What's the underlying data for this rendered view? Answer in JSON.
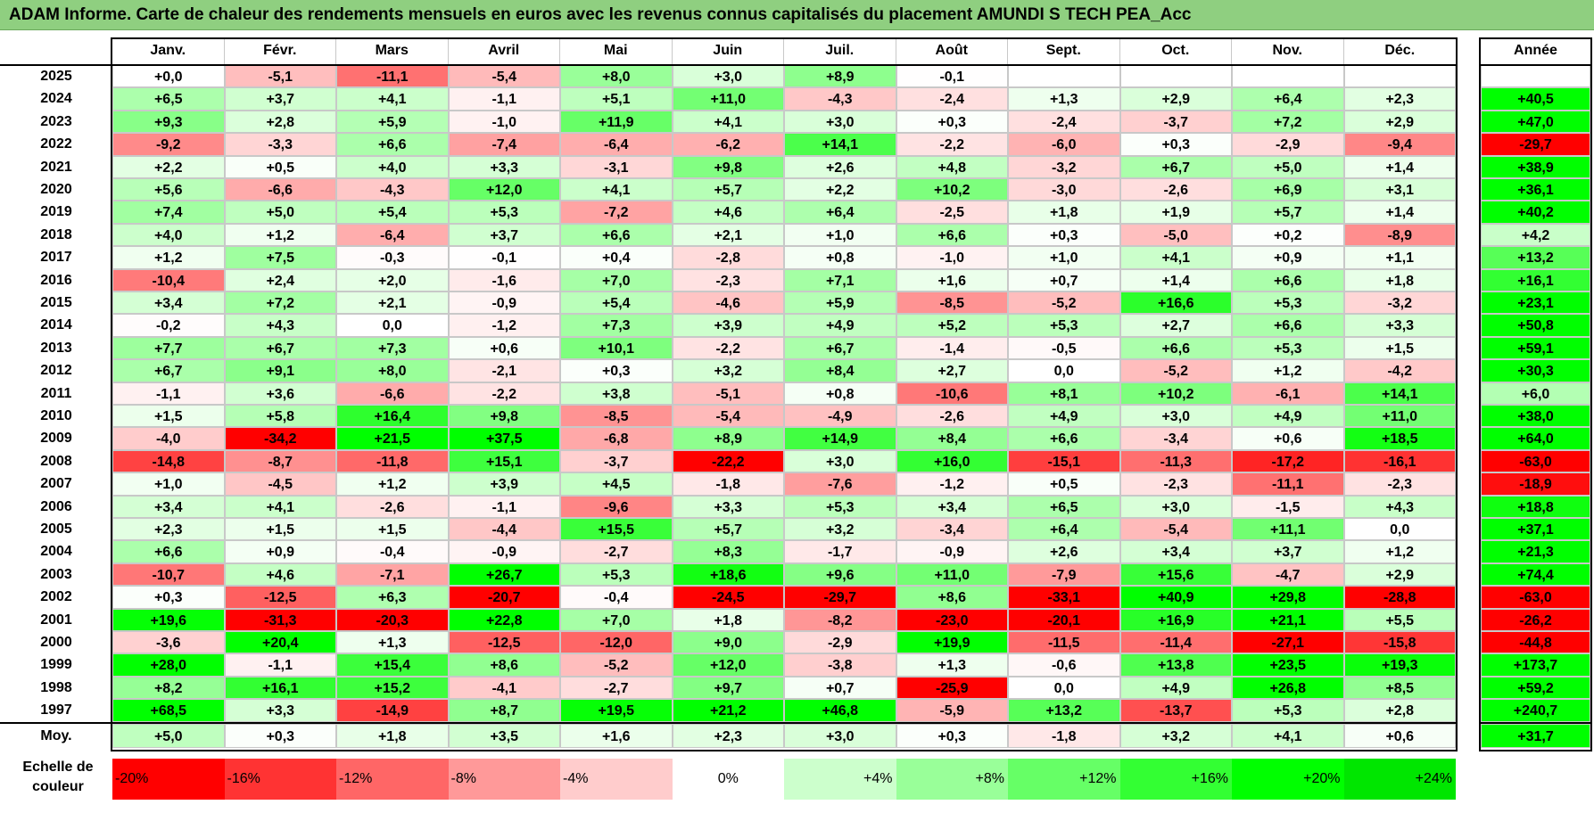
{
  "title": "ADAM Informe. Carte de chaleur des rendements mensuels en euros avec les revenus connus capitalisés du placement AMUNDI S TECH PEA_Acc",
  "chart_data": {
    "type": "heatmap",
    "months": [
      "Janv.",
      "Févr.",
      "Mars",
      "Avril",
      "Mai",
      "Juin",
      "Juil.",
      "Août",
      "Sept.",
      "Oct.",
      "Nov.",
      "Déc."
    ],
    "annual_header": "Année",
    "rows": [
      {
        "year": "2025",
        "values": [
          "+0,0",
          "-5,1",
          "-11,1",
          "-5,4",
          "+8,0",
          "+3,0",
          "+8,9",
          "-0,1",
          "",
          "",
          "",
          ""
        ],
        "annual": ""
      },
      {
        "year": "2024",
        "values": [
          "+6,5",
          "+3,7",
          "+4,1",
          "-1,1",
          "+5,1",
          "+11,0",
          "-4,3",
          "-2,4",
          "+1,3",
          "+2,9",
          "+6,4",
          "+2,3"
        ],
        "annual": "+40,5"
      },
      {
        "year": "2023",
        "values": [
          "+9,3",
          "+2,8",
          "+5,9",
          "-1,0",
          "+11,9",
          "+4,1",
          "+3,0",
          "+0,3",
          "-2,4",
          "-3,7",
          "+7,2",
          "+2,9"
        ],
        "annual": "+47,0"
      },
      {
        "year": "2022",
        "values": [
          "-9,2",
          "-3,3",
          "+6,6",
          "-7,4",
          "-6,4",
          "-6,2",
          "+14,1",
          "-2,2",
          "-6,0",
          "+0,3",
          "-2,9",
          "-9,4"
        ],
        "annual": "-29,7"
      },
      {
        "year": "2021",
        "values": [
          "+2,2",
          "+0,5",
          "+4,0",
          "+3,3",
          "-3,1",
          "+9,8",
          "+2,6",
          "+4,8",
          "-3,2",
          "+6,7",
          "+5,0",
          "+1,4"
        ],
        "annual": "+38,9"
      },
      {
        "year": "2020",
        "values": [
          "+5,6",
          "-6,6",
          "-4,3",
          "+12,0",
          "+4,1",
          "+5,7",
          "+2,2",
          "+10,2",
          "-3,0",
          "-2,6",
          "+6,9",
          "+3,1"
        ],
        "annual": "+36,1"
      },
      {
        "year": "2019",
        "values": [
          "+7,4",
          "+5,0",
          "+5,4",
          "+5,3",
          "-7,2",
          "+4,6",
          "+6,4",
          "-2,5",
          "+1,8",
          "+1,9",
          "+5,7",
          "+1,4"
        ],
        "annual": "+40,2"
      },
      {
        "year": "2018",
        "values": [
          "+4,0",
          "+1,2",
          "-6,4",
          "+3,7",
          "+6,6",
          "+2,1",
          "+1,0",
          "+6,6",
          "+0,3",
          "-5,0",
          "+0,2",
          "-8,9"
        ],
        "annual": "+4,2"
      },
      {
        "year": "2017",
        "values": [
          "+1,2",
          "+7,5",
          "-0,3",
          "-0,1",
          "+0,4",
          "-2,8",
          "+0,8",
          "-1,0",
          "+1,0",
          "+4,1",
          "+0,9",
          "+1,1"
        ],
        "annual": "+13,2"
      },
      {
        "year": "2016",
        "values": [
          "-10,4",
          "+2,4",
          "+2,0",
          "-1,6",
          "+7,0",
          "-2,3",
          "+7,1",
          "+1,6",
          "+0,7",
          "+1,4",
          "+6,6",
          "+1,8"
        ],
        "annual": "+16,1"
      },
      {
        "year": "2015",
        "values": [
          "+3,4",
          "+7,2",
          "+2,1",
          "-0,9",
          "+5,4",
          "-4,6",
          "+5,9",
          "-8,5",
          "-5,2",
          "+16,6",
          "+5,3",
          "-3,2"
        ],
        "annual": "+23,1"
      },
      {
        "year": "2014",
        "values": [
          "-0,2",
          "+4,3",
          "0,0",
          "-1,2",
          "+7,3",
          "+3,9",
          "+4,9",
          "+5,2",
          "+5,3",
          "+2,7",
          "+6,6",
          "+3,3"
        ],
        "annual": "+50,8"
      },
      {
        "year": "2013",
        "values": [
          "+7,7",
          "+6,7",
          "+7,3",
          "+0,6",
          "+10,1",
          "-2,2",
          "+6,7",
          "-1,4",
          "-0,5",
          "+6,6",
          "+5,3",
          "+1,5"
        ],
        "annual": "+59,1"
      },
      {
        "year": "2012",
        "values": [
          "+6,7",
          "+9,1",
          "+8,0",
          "-2,1",
          "+0,3",
          "+3,2",
          "+8,4",
          "+2,7",
          "0,0",
          "-5,2",
          "+1,2",
          "-4,2"
        ],
        "annual": "+30,3"
      },
      {
        "year": "2011",
        "values": [
          "-1,1",
          "+3,6",
          "-6,6",
          "-2,2",
          "+3,8",
          "-5,1",
          "+0,8",
          "-10,6",
          "+8,1",
          "+10,2",
          "-6,1",
          "+14,1"
        ],
        "annual": "+6,0"
      },
      {
        "year": "2010",
        "values": [
          "+1,5",
          "+5,8",
          "+16,4",
          "+9,8",
          "-8,5",
          "-5,4",
          "-4,9",
          "-2,6",
          "+4,9",
          "+3,0",
          "+4,9",
          "+11,0"
        ],
        "annual": "+38,0"
      },
      {
        "year": "2009",
        "values": [
          "-4,0",
          "-34,2",
          "+21,5",
          "+37,5",
          "-6,8",
          "+8,9",
          "+14,9",
          "+8,4",
          "+6,6",
          "-3,4",
          "+0,6",
          "+18,5"
        ],
        "annual": "+64,0"
      },
      {
        "year": "2008",
        "values": [
          "-14,8",
          "-8,7",
          "-11,8",
          "+15,1",
          "-3,7",
          "-22,2",
          "+3,0",
          "+16,0",
          "-15,1",
          "-11,3",
          "-17,2",
          "-16,1"
        ],
        "annual": "-63,0"
      },
      {
        "year": "2007",
        "values": [
          "+1,0",
          "-4,5",
          "+1,2",
          "+3,9",
          "+4,5",
          "-1,8",
          "-7,6",
          "-1,2",
          "+0,5",
          "-2,3",
          "-11,1",
          "-2,3"
        ],
        "annual": "-18,9"
      },
      {
        "year": "2006",
        "values": [
          "+3,4",
          "+4,1",
          "-2,6",
          "-1,1",
          "-9,6",
          "+3,3",
          "+5,3",
          "+3,4",
          "+6,5",
          "+3,0",
          "-1,5",
          "+4,3"
        ],
        "annual": "+18,8"
      },
      {
        "year": "2005",
        "values": [
          "+2,3",
          "+1,5",
          "+1,5",
          "-4,4",
          "+15,5",
          "+5,7",
          "+3,2",
          "-3,4",
          "+6,4",
          "-5,4",
          "+11,1",
          "0,0"
        ],
        "annual": "+37,1"
      },
      {
        "year": "2004",
        "values": [
          "+6,6",
          "+0,9",
          "-0,4",
          "-0,9",
          "-2,7",
          "+8,3",
          "-1,7",
          "-0,9",
          "+2,6",
          "+3,4",
          "+3,7",
          "+1,2"
        ],
        "annual": "+21,3"
      },
      {
        "year": "2003",
        "values": [
          "-10,7",
          "+4,6",
          "-7,1",
          "+26,7",
          "+5,3",
          "+18,6",
          "+9,6",
          "+11,0",
          "-7,9",
          "+15,6",
          "-4,7",
          "+2,9"
        ],
        "annual": "+74,4"
      },
      {
        "year": "2002",
        "values": [
          "+0,3",
          "-12,5",
          "+6,3",
          "-20,7",
          "-0,4",
          "-24,5",
          "-29,7",
          "+8,6",
          "-33,1",
          "+40,9",
          "+29,8",
          "-28,8"
        ],
        "annual": "-63,0"
      },
      {
        "year": "2001",
        "values": [
          "+19,6",
          "-31,3",
          "-20,3",
          "+22,8",
          "+7,0",
          "+1,8",
          "-8,2",
          "-23,0",
          "-20,1",
          "+16,9",
          "+21,1",
          "+5,5"
        ],
        "annual": "-26,2"
      },
      {
        "year": "2000",
        "values": [
          "-3,6",
          "+20,4",
          "+1,3",
          "-12,5",
          "-12,0",
          "+9,0",
          "-2,9",
          "+19,9",
          "-11,5",
          "-11,4",
          "-27,1",
          "-15,8"
        ],
        "annual": "-44,8"
      },
      {
        "year": "1999",
        "values": [
          "+28,0",
          "-1,1",
          "+15,4",
          "+8,6",
          "-5,2",
          "+12,0",
          "-3,8",
          "+1,3",
          "-0,6",
          "+13,8",
          "+23,5",
          "+19,3"
        ],
        "annual": "+173,7"
      },
      {
        "year": "1998",
        "values": [
          "+8,2",
          "+16,1",
          "+15,2",
          "-4,1",
          "-2,7",
          "+9,7",
          "+0,7",
          "-25,9",
          "0,0",
          "+4,9",
          "+26,8",
          "+8,5"
        ],
        "annual": "+59,2"
      },
      {
        "year": "1997",
        "values": [
          "+68,5",
          "+3,3",
          "-14,9",
          "+8,7",
          "+19,5",
          "+21,2",
          "+46,8",
          "-5,9",
          "+13,2",
          "-13,7",
          "+5,3",
          "+2,8"
        ],
        "annual": "+240,7"
      }
    ],
    "average": {
      "label": "Moy.",
      "values": [
        "+5,0",
        "+0,3",
        "+1,8",
        "+3,5",
        "+1,6",
        "+2,3",
        "+3,0",
        "+0,3",
        "-1,8",
        "+3,2",
        "+4,1",
        "+0,6"
      ],
      "annual": "+31,7"
    },
    "color_scale": {
      "label": "Echelle de couleur",
      "steps": [
        {
          "label": "-20%",
          "value": -20,
          "color": "#ff0000"
        },
        {
          "label": "-16%",
          "value": -16,
          "color": "#ff3333"
        },
        {
          "label": "-12%",
          "value": -12,
          "color": "#ff6666"
        },
        {
          "label": "-8%",
          "value": -8,
          "color": "#ff9999"
        },
        {
          "label": "-4%",
          "value": -4,
          "color": "#ffcccc"
        },
        {
          "label": "0%",
          "value": 0,
          "color": "#ffffff"
        },
        {
          "label": "+4%",
          "value": 4,
          "color": "#ccffcc"
        },
        {
          "label": "+8%",
          "value": 8,
          "color": "#99ff99"
        },
        {
          "label": "+12%",
          "value": 12,
          "color": "#66ff66"
        },
        {
          "label": "+16%",
          "value": 16,
          "color": "#33ff33"
        },
        {
          "label": "+20%",
          "value": 20,
          "color": "#00ff00"
        },
        {
          "label": "+24%",
          "value": 24,
          "color": "#00e600"
        }
      ]
    }
  }
}
